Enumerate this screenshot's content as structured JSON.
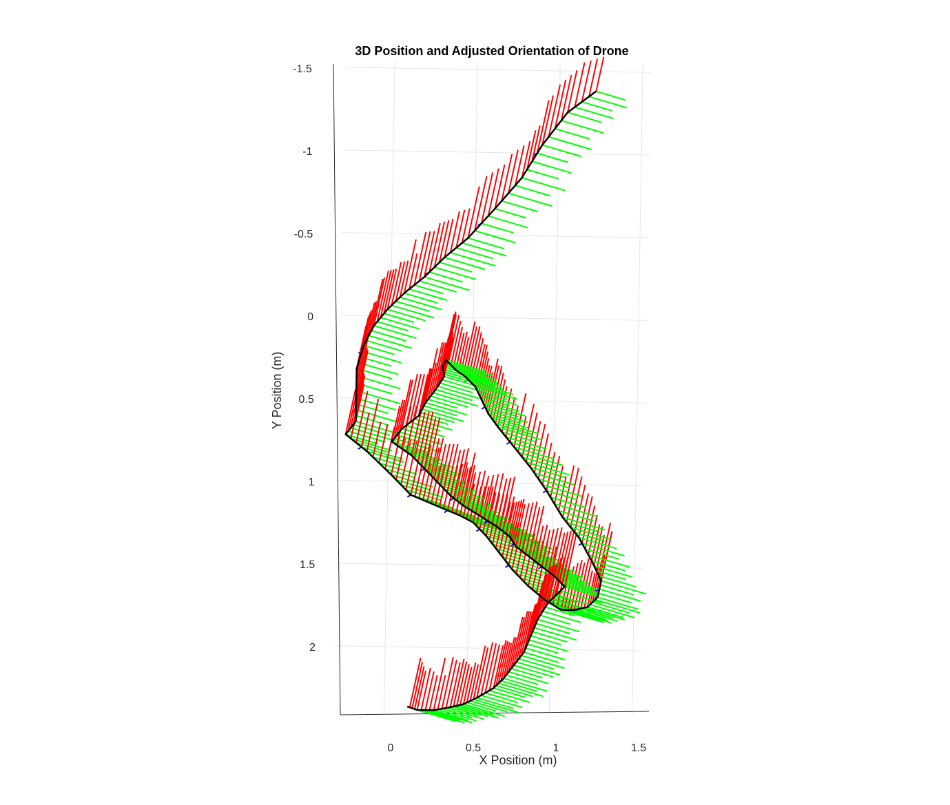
{
  "chart_data": {
    "type": "line",
    "title": "3D Position and Adjusted Orientation of Drone",
    "xlabel": "X Position (m)",
    "ylabel": "Y Position (m)",
    "xlim": [
      -0.3,
      1.55
    ],
    "ylim": [
      -1.55,
      2.4
    ],
    "y_reversed": true,
    "grid": true,
    "xticks": [
      "0",
      "0.5",
      "1",
      "1.5"
    ],
    "yticks": [
      "-1.5",
      "-1",
      "-0.5",
      "0",
      "0.5",
      "1",
      "1.5",
      "2"
    ],
    "x_tick_values": [
      0,
      0.5,
      1,
      1.5
    ],
    "y_tick_values": [
      -1.5,
      -1,
      -0.5,
      0,
      0.5,
      1,
      1.5,
      2
    ],
    "colors": {
      "trajectory": "#000000",
      "vector_primary": "#ff0000",
      "vector_secondary": "#00ff00",
      "vector_tertiary": "#0000ff",
      "grid": "#e6e6e6",
      "axis": "#262626"
    },
    "series": [
      {
        "x": [
          1.22,
          1.05,
          0.9,
          0.78,
          0.62,
          0.46,
          0.32,
          0.2,
          0.08,
          -0.02,
          -0.1,
          -0.16,
          -0.2,
          -0.2,
          -0.2,
          -0.26,
          -0.13,
          0.02,
          0.14,
          0.24,
          0.34,
          0.44,
          0.52,
          0.6,
          0.68,
          0.76,
          0.86,
          0.96,
          1.06,
          1.14,
          1.22,
          1.28,
          1.3,
          1.24,
          1.16,
          1.06,
          0.96,
          0.86,
          0.76,
          0.66,
          0.6,
          0.56,
          0.52,
          0.46,
          0.4,
          0.34,
          0.32,
          0.33,
          0.28,
          0.22,
          0.18,
          0.08,
          0.02,
          0.14,
          0.22,
          0.3,
          0.38,
          0.46,
          0.56,
          0.66,
          0.74,
          0.78,
          0.86,
          0.94,
          1.02,
          1.08,
          0.98,
          0.92,
          0.88,
          0.84,
          0.78,
          0.72,
          0.66,
          0.56,
          0.48,
          0.4,
          0.3,
          0.2,
          0.14
        ],
        "y": [
          -1.38,
          -1.25,
          -1.05,
          -0.85,
          -0.66,
          -0.48,
          -0.36,
          -0.24,
          -0.14,
          -0.04,
          0.06,
          0.18,
          0.32,
          0.5,
          0.64,
          0.72,
          0.82,
          0.96,
          1.08,
          1.12,
          1.16,
          1.2,
          1.24,
          1.32,
          1.42,
          1.52,
          1.62,
          1.7,
          1.76,
          1.76,
          1.74,
          1.68,
          1.58,
          1.46,
          1.32,
          1.2,
          1.04,
          0.9,
          0.78,
          0.66,
          0.58,
          0.5,
          0.42,
          0.36,
          0.32,
          0.26,
          0.3,
          0.36,
          0.44,
          0.52,
          0.6,
          0.68,
          0.76,
          0.84,
          0.92,
          1.0,
          1.08,
          1.14,
          1.2,
          1.26,
          1.32,
          1.38,
          1.44,
          1.5,
          1.56,
          1.62,
          1.72,
          1.82,
          1.92,
          2.02,
          2.1,
          2.18,
          2.24,
          2.3,
          2.34,
          2.36,
          2.38,
          2.38,
          2.36
        ]
      }
    ]
  }
}
